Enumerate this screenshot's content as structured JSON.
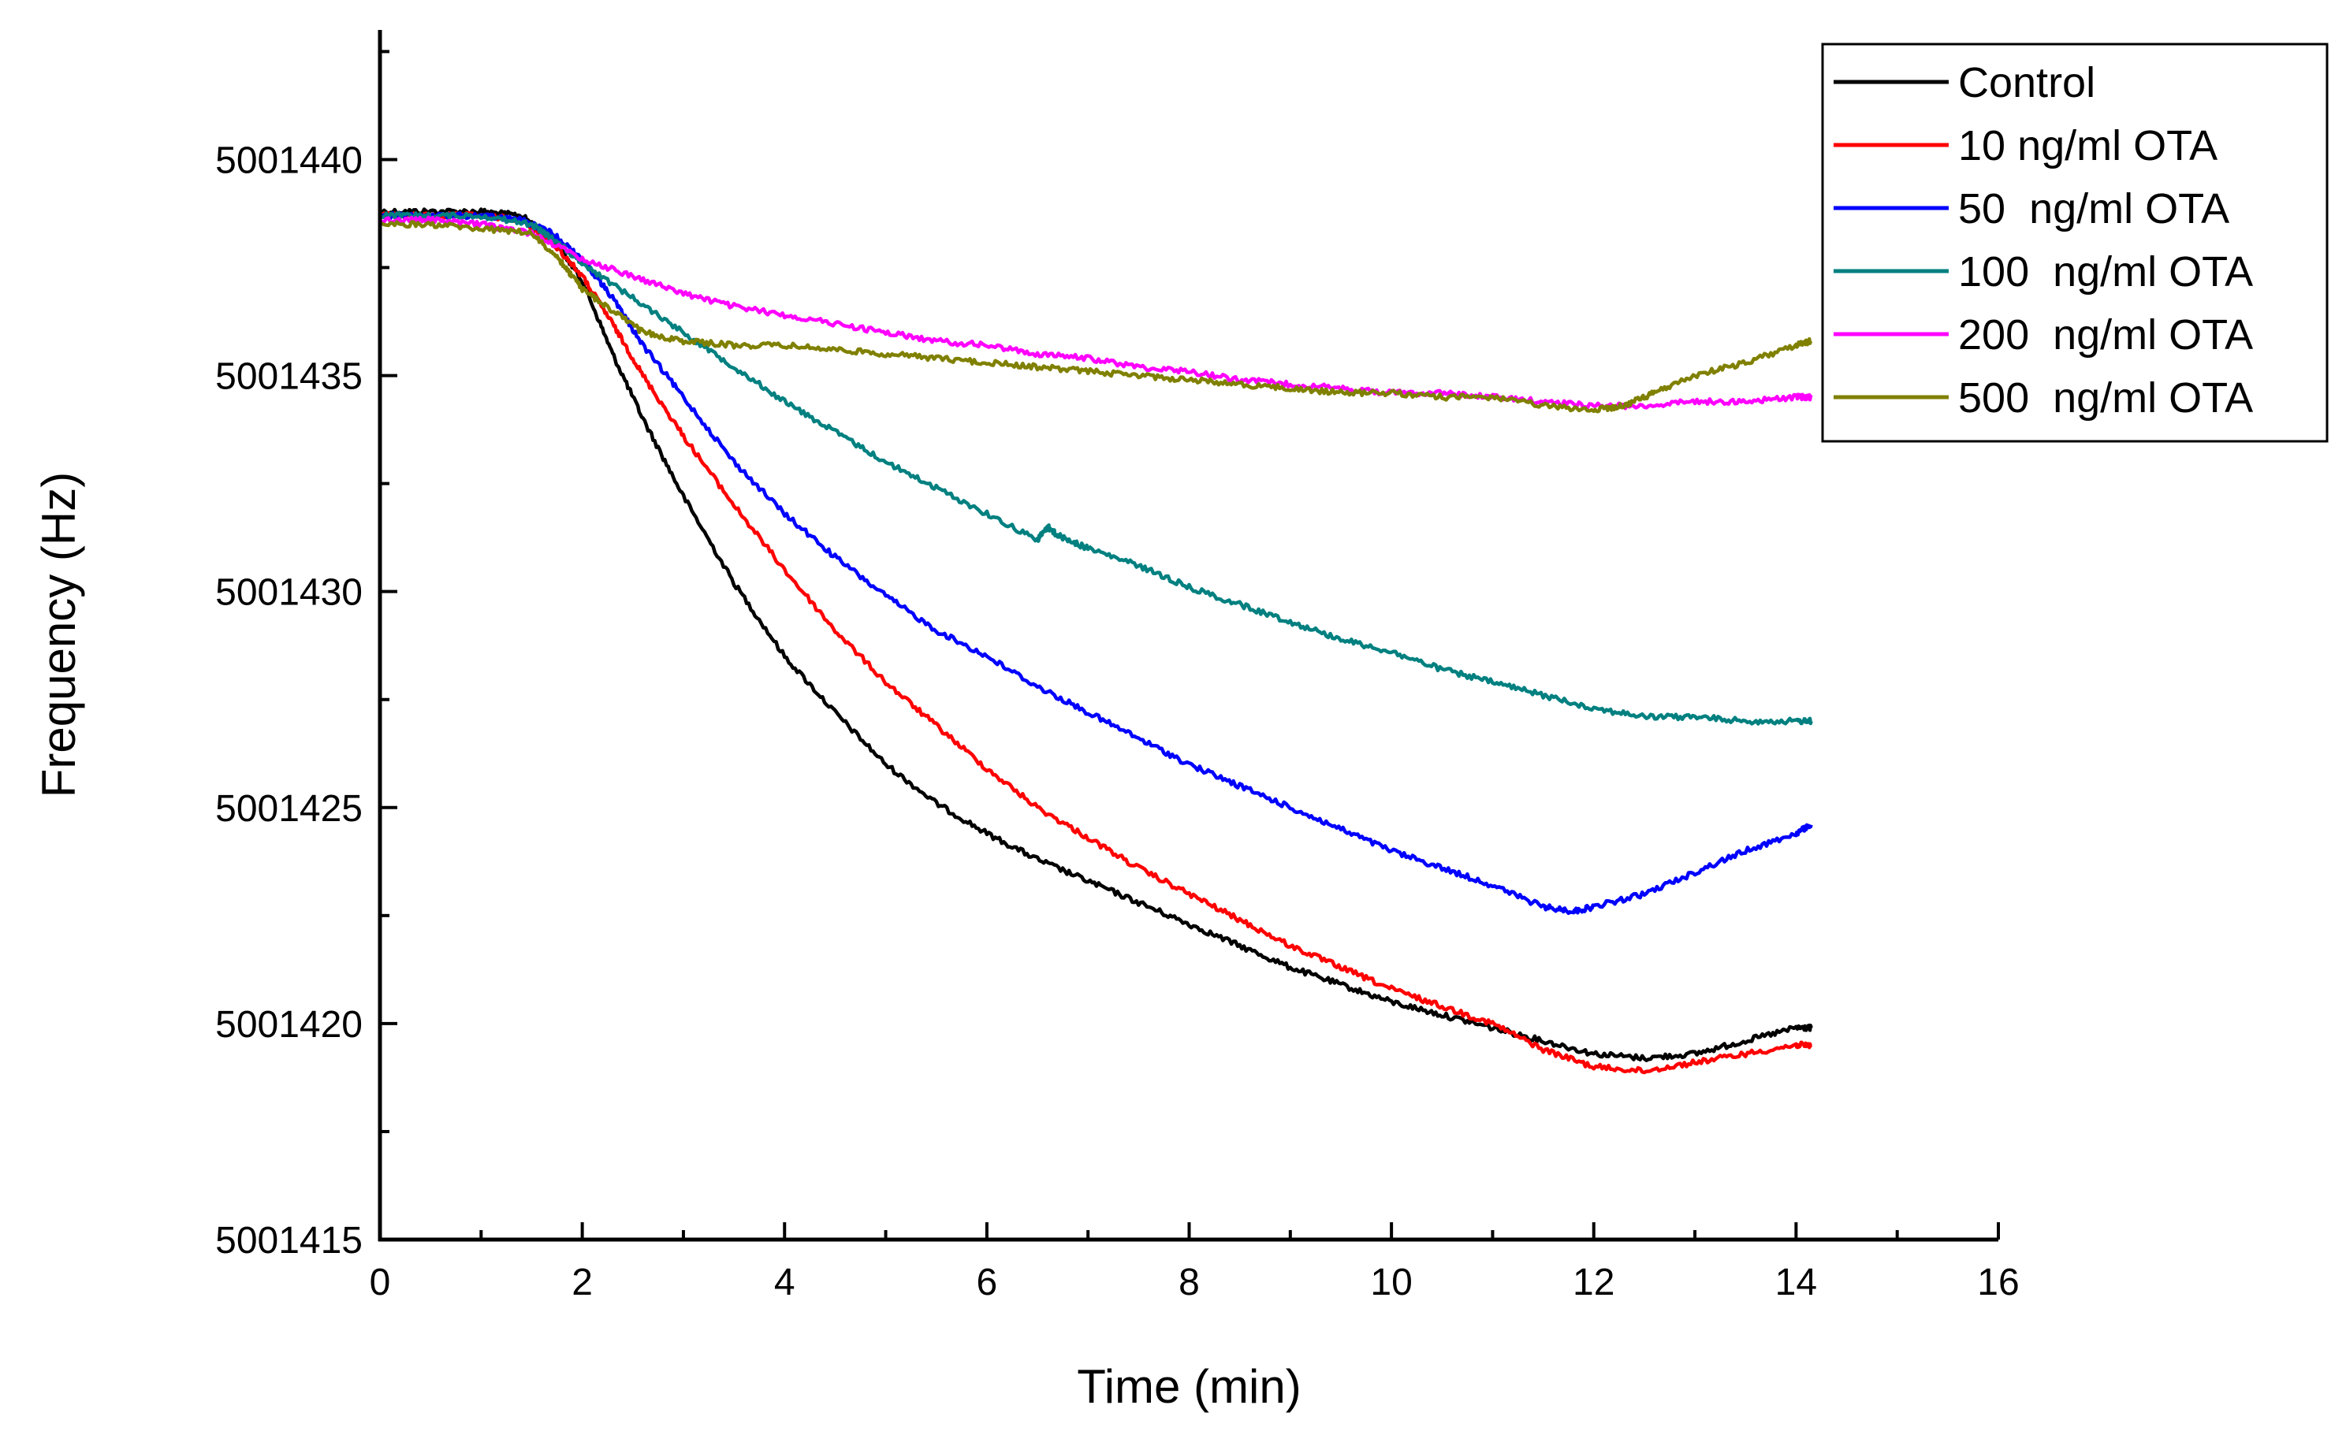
{
  "chart_data": {
    "type": "line",
    "title": "",
    "xlabel": "Time (min)",
    "ylabel": "Frequency (Hz)",
    "xlim": [
      0,
      16
    ],
    "ylim": [
      5001415,
      5001443
    ],
    "x_ticks": [
      0,
      2,
      4,
      6,
      8,
      10,
      12,
      14,
      16
    ],
    "x_tick_labels": [
      "0",
      "2",
      "4",
      "6",
      "8",
      "10",
      "12",
      "14",
      "16"
    ],
    "y_ticks": [
      5001415,
      5001420,
      5001425,
      5001430,
      5001435,
      5001440
    ],
    "y_tick_labels": [
      "5001415",
      "5001420",
      "5001425",
      "5001430",
      "5001435",
      "5001440"
    ],
    "grid": false,
    "legend_position": "top-right",
    "series": [
      {
        "name": "Control",
        "color": "#000000",
        "x": [
          0,
          0.5,
          1,
          1.4,
          1.7,
          2,
          2.3,
          2.6,
          3,
          3.5,
          4,
          4.5,
          5,
          5.5,
          6,
          6.5,
          7,
          7.5,
          8,
          8.5,
          9,
          9.5,
          10,
          10.5,
          11,
          11.5,
          12,
          12.5,
          13,
          13.5,
          14,
          14.15
        ],
        "y": [
          5001438.8,
          5001438.8,
          5001438.8,
          5001438.7,
          5001438.2,
          5001437.2,
          5001435.5,
          5001434.0,
          5001432.2,
          5001430.2,
          5001428.5,
          5001427.2,
          5001426.0,
          5001425.1,
          5001424.4,
          5001423.8,
          5001423.3,
          5001422.8,
          5001422.3,
          5001421.8,
          5001421.3,
          5001420.9,
          5001420.5,
          5001420.2,
          5001419.9,
          5001419.6,
          5001419.3,
          5001419.2,
          5001419.3,
          5001419.6,
          5001419.9,
          5001419.9
        ]
      },
      {
        "name": "10 ng/ml OTA",
        "color": "#ff0000",
        "x": [
          0,
          0.5,
          1,
          1.4,
          1.7,
          2,
          2.3,
          2.6,
          3,
          3.5,
          4,
          4.5,
          5,
          5.5,
          6,
          6.5,
          7,
          7.5,
          8,
          8.5,
          9,
          9.5,
          10,
          10.5,
          11,
          11.5,
          12,
          12.5,
          13,
          13.5,
          14,
          14.15
        ],
        "y": [
          5001438.7,
          5001438.7,
          5001438.7,
          5001438.6,
          5001438.1,
          5001437.3,
          5001436.2,
          5001435.0,
          5001433.6,
          5001432.0,
          5001430.5,
          5001429.1,
          5001427.9,
          5001426.9,
          5001425.9,
          5001425.0,
          5001424.3,
          5001423.6,
          5001423.0,
          5001422.4,
          5001421.8,
          5001421.3,
          5001420.8,
          5001420.4,
          5001420.0,
          5001419.4,
          5001419.0,
          5001418.9,
          5001419.1,
          5001419.3,
          5001419.5,
          5001419.5
        ]
      },
      {
        "name": "50  ng/ml OTA",
        "color": "#0000ff",
        "x": [
          0,
          0.5,
          1,
          1.4,
          1.7,
          2,
          2.3,
          2.6,
          3,
          3.5,
          4,
          4.5,
          5,
          5.5,
          6,
          6.5,
          7,
          7.5,
          8,
          8.5,
          9,
          9.5,
          10,
          10.5,
          11,
          11.5,
          11.8,
          12,
          12.5,
          13,
          13.5,
          14,
          14.15
        ],
        "y": [
          5001438.7,
          5001438.7,
          5001438.7,
          5001438.6,
          5001438.3,
          5001437.7,
          5001436.8,
          5001435.7,
          5001434.5,
          5001433.0,
          5001431.8,
          5001430.8,
          5001429.9,
          5001429.1,
          5001428.5,
          5001427.8,
          5001427.2,
          5001426.6,
          5001426.0,
          5001425.5,
          5001425.0,
          5001424.5,
          5001424.0,
          5001423.6,
          5001423.2,
          5001422.7,
          5001422.6,
          5001422.7,
          5001423.0,
          5001423.5,
          5001424.0,
          5001424.4,
          5001424.6
        ]
      },
      {
        "name": "100  ng/ml OTA",
        "color": "#008080",
        "x": [
          0,
          0.5,
          1,
          1.5,
          1.8,
          2,
          2.5,
          3,
          3.5,
          4,
          4.5,
          5,
          5.5,
          6,
          6.5,
          6.6,
          6.7,
          7,
          7.5,
          8,
          8.5,
          9,
          9.5,
          10,
          10.5,
          11,
          11.5,
          12,
          12.5,
          13,
          13.5,
          14,
          14.15
        ],
        "y": [
          5001438.7,
          5001438.7,
          5001438.7,
          5001438.5,
          5001438.0,
          5001437.6,
          5001436.8,
          5001436.0,
          5001435.2,
          5001434.4,
          5001433.7,
          5001433.0,
          5001432.4,
          5001431.8,
          5001431.2,
          5001431.5,
          5001431.3,
          5001431.0,
          5001430.6,
          5001430.1,
          5001429.7,
          5001429.3,
          5001428.9,
          5001428.6,
          5001428.2,
          5001427.9,
          5001427.6,
          5001427.3,
          5001427.1,
          5001427.1,
          5001427.0,
          5001427.0,
          5001427.0
        ]
      },
      {
        "name": "200  ng/ml OTA",
        "color": "#ff00ff",
        "x": [
          0,
          0.5,
          1,
          1.5,
          2,
          2.5,
          3,
          3.5,
          4,
          4.5,
          5,
          5.5,
          6,
          6.5,
          7,
          7.5,
          8,
          8.5,
          9,
          9.5,
          10,
          10.5,
          11,
          11.5,
          12,
          12.5,
          13,
          13.5,
          14,
          14.15
        ],
        "y": [
          5001438.6,
          5001438.6,
          5001438.5,
          5001438.3,
          5001437.7,
          5001437.3,
          5001436.9,
          5001436.6,
          5001436.4,
          5001436.2,
          5001436.0,
          5001435.8,
          5001435.7,
          5001435.5,
          5001435.4,
          5001435.2,
          5001435.1,
          5001434.9,
          5001434.8,
          5001434.7,
          5001434.6,
          5001434.6,
          5001434.5,
          5001434.4,
          5001434.3,
          5001434.3,
          5001434.4,
          5001434.4,
          5001434.5,
          5001434.5
        ]
      },
      {
        "name": "500  ng/ml OTA",
        "color": "#808000",
        "x": [
          0,
          0.5,
          1,
          1.5,
          1.8,
          2,
          2.3,
          2.6,
          3,
          3.5,
          4,
          4.5,
          5,
          5.5,
          6,
          6.5,
          7,
          7.5,
          8,
          8.5,
          9,
          9.5,
          10,
          10.5,
          11,
          11.5,
          12,
          12.3,
          12.6,
          13,
          13.5,
          14,
          14.15
        ],
        "y": [
          5001438.5,
          5001438.5,
          5001438.4,
          5001438.3,
          5001437.6,
          5001437.0,
          5001436.5,
          5001436.0,
          5001435.8,
          5001435.7,
          5001435.7,
          5001435.6,
          5001435.5,
          5001435.4,
          5001435.3,
          5001435.2,
          5001435.1,
          5001435.0,
          5001434.9,
          5001434.8,
          5001434.7,
          5001434.6,
          5001434.6,
          5001434.5,
          5001434.5,
          5001434.3,
          5001434.2,
          5001434.3,
          5001434.6,
          5001435.0,
          5001435.3,
          5001435.7,
          5001435.8
        ]
      }
    ]
  }
}
